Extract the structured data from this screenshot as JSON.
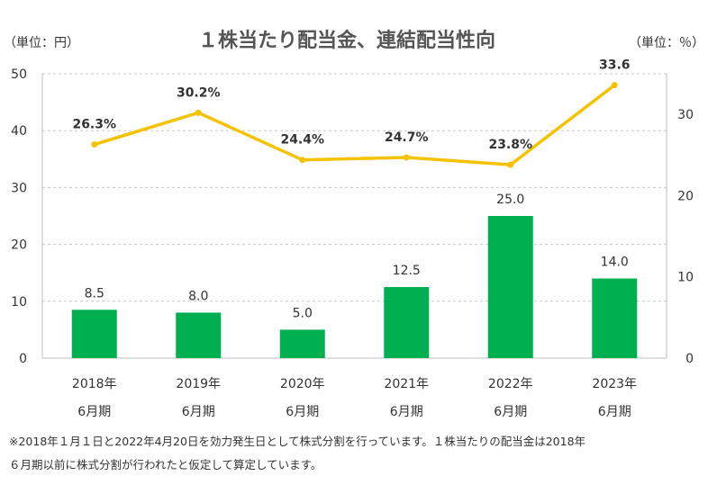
{
  "chart_data": {
    "type": "bar",
    "title": "１株当たり配当金、連結配当性向",
    "left_unit": "（単位：円）",
    "right_unit": "（単位：％）",
    "categories": [
      [
        "2018年",
        "6月期"
      ],
      [
        "2019年",
        "6月期"
      ],
      [
        "2020年",
        "6月期"
      ],
      [
        "2021年",
        "6月期"
      ],
      [
        "2022年",
        "6月期"
      ],
      [
        "2023年",
        "6月期"
      ]
    ],
    "series": [
      {
        "type": "bar",
        "axis": "left",
        "color": "#00b050",
        "values": [
          8.5,
          8.0,
          5.0,
          12.5,
          25.0,
          14.0
        ],
        "labels": [
          "8.5",
          "8.0",
          "5.0",
          "12.5",
          "25.0",
          "14.0"
        ]
      },
      {
        "type": "line",
        "axis": "right",
        "color": "#f5c200",
        "values": [
          26.3,
          30.2,
          24.4,
          24.7,
          23.8,
          33.6
        ],
        "labels": [
          "26.3%",
          "30.2%",
          "24.4%",
          "24.7%",
          "23.8%",
          "33.6"
        ]
      }
    ],
    "ylim_left": [
      0,
      50
    ],
    "yticks_left": [
      "0",
      "10",
      "20",
      "30",
      "40",
      "50"
    ],
    "ylim_right": [
      0,
      35
    ],
    "yticks_right": [
      "0",
      "10",
      "20",
      "30"
    ],
    "grid": true
  },
  "footnote": {
    "line1": "※2018年１月１日と2022年4月20日を効力発生日として株式分割を行っています。１株当たりの配当金は2018年",
    "line2": "６月期以前に株式分割が行われたと仮定して算定しています。"
  }
}
